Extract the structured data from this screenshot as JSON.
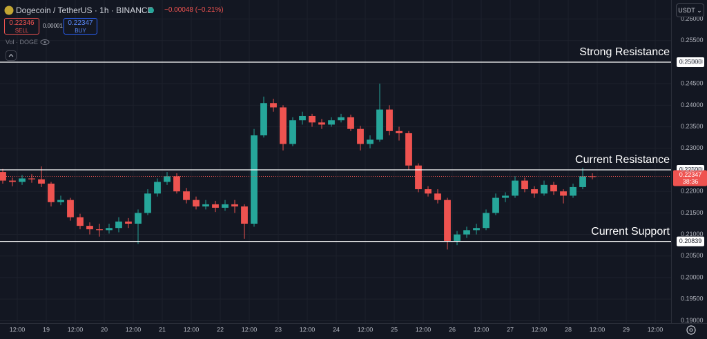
{
  "chart_data": {
    "type": "candlestick",
    "symbol": "Dogecoin / TetherUS · 1h · BINANCE",
    "change": "−0.00048 (−0.21%)",
    "sell": {
      "price": "0.22346",
      "label": "SELL"
    },
    "spread": "0.00001",
    "buy": {
      "price": "0.22347",
      "label": "BUY"
    },
    "volume_label": "Vol · DOGE",
    "currency": "USDT",
    "up_color": "#26a69a",
    "down_color": "#ef5350",
    "xlim": [
      -7.14,
      270.57
    ],
    "ylim": [
      0.18942,
      0.26442
    ],
    "xticks": [
      {
        "value": 0,
        "label": "12:00"
      },
      {
        "value": 12,
        "label": "19"
      },
      {
        "value": 24,
        "label": "12:00"
      },
      {
        "value": 36,
        "label": "20"
      },
      {
        "value": 48,
        "label": "12:00"
      },
      {
        "value": 60,
        "label": "21"
      },
      {
        "value": 72,
        "label": "12:00"
      },
      {
        "value": 84,
        "label": "22"
      },
      {
        "value": 96,
        "label": "12:00"
      },
      {
        "value": 108,
        "label": "23"
      },
      {
        "value": 120,
        "label": "12:00"
      },
      {
        "value": 132,
        "label": "24"
      },
      {
        "value": 144,
        "label": "12:00"
      },
      {
        "value": 156,
        "label": "25"
      },
      {
        "value": 168,
        "label": "12:00"
      },
      {
        "value": 180,
        "label": "26"
      },
      {
        "value": 192,
        "label": "12:00"
      },
      {
        "value": 204,
        "label": "27"
      },
      {
        "value": 216,
        "label": "12:00"
      },
      {
        "value": 228,
        "label": "28"
      },
      {
        "value": 240,
        "label": "12:00"
      },
      {
        "value": 252,
        "label": "29"
      },
      {
        "value": 264,
        "label": "12:00"
      }
    ],
    "yticks": [
      {
        "value": 0.19,
        "label": "0.19000"
      },
      {
        "value": 0.195,
        "label": "0.19500"
      },
      {
        "value": 0.2,
        "label": "0.20000"
      },
      {
        "value": 0.205,
        "label": "0.20500"
      },
      {
        "value": 0.21,
        "label": "0.21000"
      },
      {
        "value": 0.215,
        "label": "0.21500"
      },
      {
        "value": 0.22,
        "label": "0.22000"
      },
      {
        "value": 0.225,
        "label": "0.22500"
      },
      {
        "value": 0.23,
        "label": "0.23000"
      },
      {
        "value": 0.235,
        "label": "0.23500"
      },
      {
        "value": 0.24,
        "label": "0.24000"
      },
      {
        "value": 0.245,
        "label": "0.24500"
      },
      {
        "value": 0.25,
        "label": "0.25000"
      },
      {
        "value": 0.255,
        "label": "0.25500"
      },
      {
        "value": 0.26,
        "label": "0.26000"
      }
    ],
    "grid": true,
    "levels": [
      {
        "name": "Strong Resistance",
        "value": 0.25,
        "value_label": "0.25000"
      },
      {
        "name": "Current Resistance",
        "value": 0.225,
        "value_label": "0.22500"
      },
      {
        "name": "Current Support",
        "value": 0.20839,
        "value_label": "0.20839"
      }
    ],
    "last_price": {
      "value": 0.22347,
      "label": "0.22347",
      "countdown": "38:36"
    },
    "x": [
      -6,
      -2,
      2,
      6,
      10,
      14,
      18,
      22,
      26,
      30,
      34,
      38,
      42,
      46,
      50,
      54,
      58,
      62,
      66,
      70,
      74,
      78,
      82,
      86,
      90,
      94,
      98,
      102,
      106,
      110,
      114,
      118,
      122,
      126,
      130,
      134,
      138,
      142,
      146,
      150,
      154,
      158,
      162,
      166,
      170,
      174,
      178,
      182,
      186,
      190,
      194,
      198,
      202,
      206,
      210,
      214,
      218,
      222,
      226,
      230,
      234,
      238
    ],
    "open": [
      0.2245,
      0.2225,
      0.2222,
      0.223,
      0.2228,
      0.2218,
      0.2175,
      0.218,
      0.214,
      0.212,
      0.2112,
      0.211,
      0.2115,
      0.213,
      0.2125,
      0.215,
      0.2195,
      0.2222,
      0.2235,
      0.22,
      0.218,
      0.2165,
      0.217,
      0.2162,
      0.217,
      0.2165,
      0.2125,
      0.233,
      0.2405,
      0.2395,
      0.231,
      0.2365,
      0.2375,
      0.236,
      0.2355,
      0.2365,
      0.2372,
      0.2345,
      0.231,
      0.232,
      0.239,
      0.234,
      0.2335,
      0.226,
      0.2205,
      0.2195,
      0.218,
      0.2085,
      0.21,
      0.211,
      0.2115,
      0.215,
      0.2185,
      0.219,
      0.2225,
      0.2205,
      0.2195,
      0.2215,
      0.22,
      0.219,
      0.221,
      0.2235
    ],
    "high": [
      0.2252,
      0.2232,
      0.2238,
      0.224,
      0.2258,
      0.2222,
      0.219,
      0.2185,
      0.2148,
      0.2128,
      0.2125,
      0.2125,
      0.214,
      0.2138,
      0.2158,
      0.2205,
      0.223,
      0.2245,
      0.2242,
      0.2208,
      0.2188,
      0.218,
      0.2178,
      0.218,
      0.218,
      0.217,
      0.2345,
      0.242,
      0.2415,
      0.24,
      0.2372,
      0.2385,
      0.238,
      0.2368,
      0.2372,
      0.238,
      0.2378,
      0.2352,
      0.233,
      0.245,
      0.24,
      0.235,
      0.234,
      0.2265,
      0.2212,
      0.2205,
      0.2185,
      0.2108,
      0.2118,
      0.2125,
      0.2158,
      0.2195,
      0.2198,
      0.2235,
      0.2232,
      0.2212,
      0.2225,
      0.2222,
      0.2205,
      0.2218,
      0.2255,
      0.2242
    ],
    "low": [
      0.2218,
      0.2212,
      0.2215,
      0.222,
      0.221,
      0.2165,
      0.2168,
      0.2132,
      0.2112,
      0.21,
      0.2095,
      0.2102,
      0.2105,
      0.2115,
      0.2078,
      0.2145,
      0.2188,
      0.2215,
      0.2195,
      0.2172,
      0.2158,
      0.2158,
      0.2152,
      0.2155,
      0.215,
      0.209,
      0.2118,
      0.2325,
      0.2385,
      0.2295,
      0.2305,
      0.2355,
      0.235,
      0.2345,
      0.235,
      0.236,
      0.234,
      0.2295,
      0.23,
      0.2315,
      0.233,
      0.2318,
      0.225,
      0.2198,
      0.2188,
      0.2172,
      0.2065,
      0.2075,
      0.2092,
      0.21,
      0.211,
      0.2145,
      0.2175,
      0.2185,
      0.2198,
      0.2185,
      0.219,
      0.2192,
      0.2172,
      0.2185,
      0.2205,
      0.2228
    ],
    "close": [
      0.2225,
      0.2222,
      0.223,
      0.2228,
      0.2218,
      0.2175,
      0.218,
      0.214,
      0.212,
      0.2112,
      0.211,
      0.2115,
      0.213,
      0.2125,
      0.215,
      0.2195,
      0.2222,
      0.2235,
      0.22,
      0.218,
      0.2165,
      0.217,
      0.2162,
      0.217,
      0.2165,
      0.2125,
      0.233,
      0.2405,
      0.2395,
      0.231,
      0.2365,
      0.2375,
      0.236,
      0.2355,
      0.2365,
      0.2372,
      0.2345,
      0.231,
      0.232,
      0.239,
      0.234,
      0.2335,
      0.226,
      0.2205,
      0.2195,
      0.218,
      0.2085,
      0.21,
      0.211,
      0.2115,
      0.215,
      0.2185,
      0.219,
      0.2225,
      0.2205,
      0.2195,
      0.2215,
      0.22,
      0.219,
      0.221,
      0.2235,
      0.22347
    ]
  }
}
